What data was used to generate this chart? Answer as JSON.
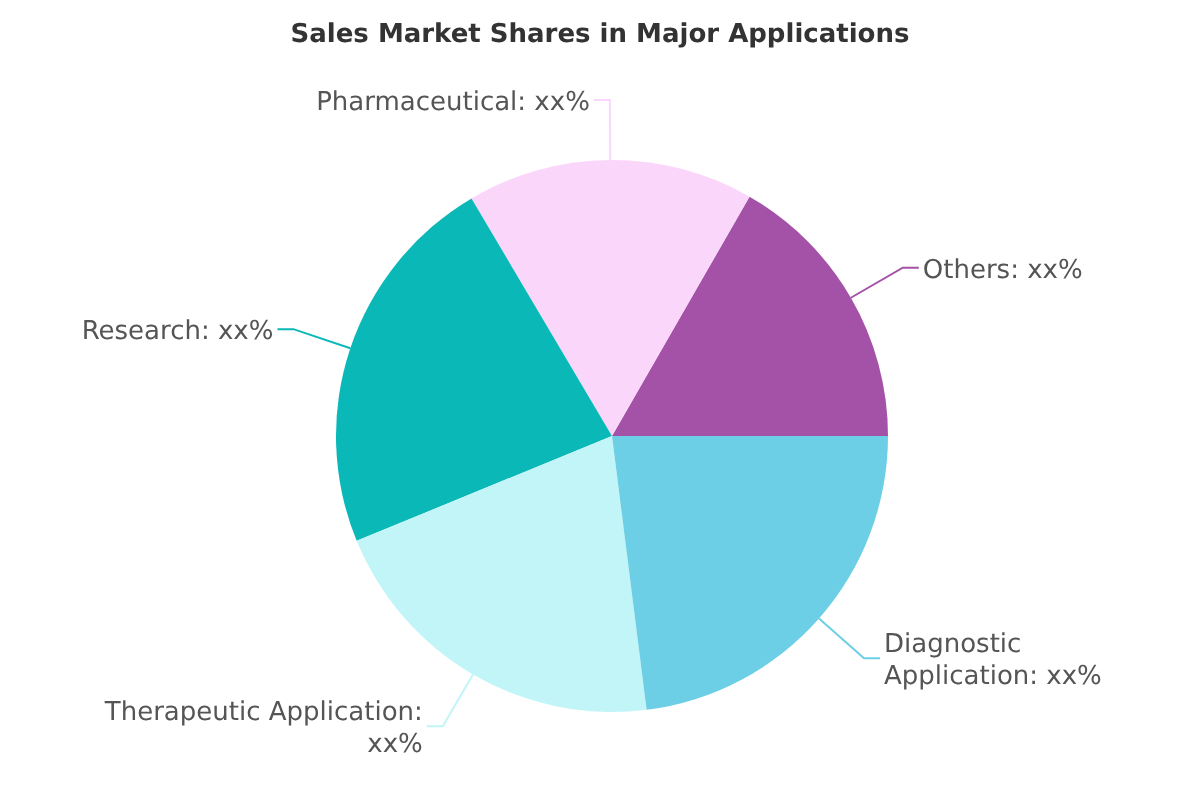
{
  "chart_data": {
    "type": "pie",
    "title": "Sales Market Shares in Major Applications",
    "categories": [
      "Others: xx%",
      "Pharmaceutical: xx%",
      "Research: xx%",
      "Therapeutic Application: xx%",
      "Diagnostic Application: xx%"
    ],
    "values": [
      16.7,
      16.8,
      22.7,
      20.8,
      23.0
    ],
    "colors": [
      "#a352a8",
      "#fbd6fb",
      "#0bb8b8",
      "#c2f5f7",
      "#6ccfe6"
    ],
    "legend": false
  }
}
